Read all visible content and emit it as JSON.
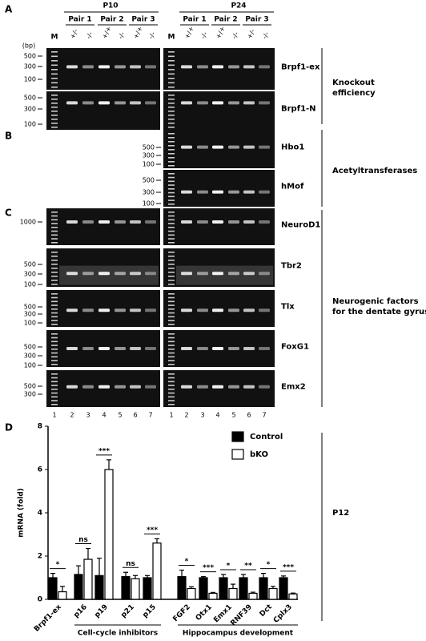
{
  "panels": {
    "a": {
      "label": "A",
      "left_age": "P10",
      "right_age": "P24",
      "left_pairs": [
        "Pair 1",
        "Pair 2",
        "Pair 3"
      ],
      "right_pairs": [
        "Pair 1",
        "Pair 2",
        "Pair 3"
      ],
      "left_lanes": [
        "M",
        "+/-",
        "-/-",
        "+/+",
        "-/-",
        "+/+",
        "-/-"
      ],
      "right_lanes": [
        "M",
        "+/+",
        "-/-",
        "+/+",
        "-/-",
        "+/-",
        "-/-"
      ],
      "unit": "(bp)",
      "gels": [
        {
          "gene": "Brpf1-ex",
          "ladder": [
            500,
            300,
            100
          ]
        },
        {
          "gene": "Brpf1-N",
          "ladder": [
            500,
            300,
            100
          ]
        }
      ],
      "group": [
        "Knockout",
        "efficiency"
      ]
    },
    "b": {
      "label": "B",
      "gels": [
        {
          "gene": "Hbo1",
          "ladder": [
            500,
            300,
            100
          ]
        },
        {
          "gene": "hMof",
          "ladder": [
            500,
            300,
            100
          ]
        }
      ],
      "group": [
        "Acetyltransferases"
      ]
    },
    "c": {
      "label": "C",
      "gels": [
        {
          "gene": "NeuroD1",
          "ladder": [
            1000
          ]
        },
        {
          "gene": "Tbr2",
          "ladder": [
            500,
            300,
            100
          ]
        },
        {
          "gene": "Tlx",
          "ladder": [
            500,
            300,
            100
          ]
        },
        {
          "gene": "FoxG1",
          "ladder": [
            500,
            300,
            100
          ]
        },
        {
          "gene": "Emx2",
          "ladder": [
            500,
            300
          ]
        }
      ],
      "lane_numbers": [
        1,
        2,
        3,
        4,
        5,
        6,
        7
      ],
      "group": [
        "Neurogenic factors",
        "for the dentate gyrus"
      ]
    },
    "d": {
      "label": "D",
      "side_label": "P12"
    }
  },
  "chart_data": {
    "type": "bar",
    "y_label": "mRNA (fold)",
    "categories": [
      "Brpf1-ex",
      "p16",
      "p19",
      "p21",
      "p15",
      "FGF2",
      "Otx1",
      "Emx1",
      "RNF39",
      "Dct",
      "Cplx3"
    ],
    "series": [
      {
        "name": "Control",
        "color": "#000000",
        "values": [
          1.0,
          1.15,
          1.1,
          1.05,
          1.0,
          1.05,
          1.0,
          1.0,
          1.0,
          1.0,
          1.0
        ],
        "errors": [
          0.2,
          0.4,
          0.8,
          0.2,
          0.1,
          0.3,
          0.05,
          0.15,
          0.15,
          0.2,
          0.08
        ]
      },
      {
        "name": "bKO",
        "color": "#ffffff",
        "values": [
          0.35,
          1.85,
          6.0,
          0.95,
          2.6,
          0.5,
          0.28,
          0.5,
          0.28,
          0.5,
          0.25
        ],
        "errors": [
          0.25,
          0.5,
          0.45,
          0.15,
          0.2,
          0.08,
          0.04,
          0.2,
          0.05,
          0.1,
          0.04
        ]
      }
    ],
    "significance": [
      "*",
      "ns",
      "***",
      "ns",
      "***",
      "*",
      "***",
      "*",
      "**",
      "*",
      "***"
    ],
    "groups": [
      {
        "name": "Cell-cycle inhibitors"
      },
      {
        "name": "Hippocampus development"
      }
    ],
    "ylim": [
      0,
      8
    ],
    "yticks": [
      0,
      2,
      4,
      6,
      8
    ]
  }
}
